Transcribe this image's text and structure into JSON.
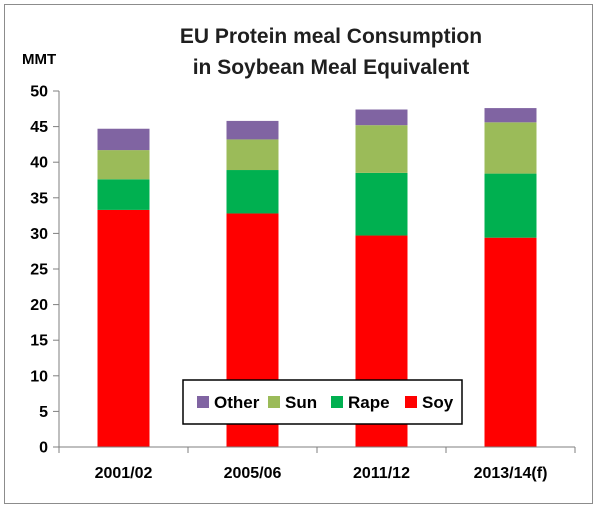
{
  "chart_data": {
    "type": "stacked-bar",
    "title": "EU Protein meal Consumption",
    "subtitle": "in Soybean Meal Equivalent",
    "ylabel": "MMT",
    "ylim": [
      0,
      50
    ],
    "yticks": [
      0,
      5,
      10,
      15,
      20,
      25,
      30,
      35,
      40,
      45,
      50
    ],
    "grid": false,
    "legend": "bottom-center",
    "categories": [
      "2001/02",
      "2005/06",
      "2011/12",
      "2013/14(f)"
    ],
    "series": [
      {
        "name": "Soy",
        "color": "#ff0000",
        "values": [
          33.3,
          32.8,
          29.7,
          29.4
        ]
      },
      {
        "name": "Rape",
        "color": "#00b050",
        "values": [
          4.3,
          6.1,
          8.8,
          9.0
        ]
      },
      {
        "name": "Sun",
        "color": "#9bbb59",
        "values": [
          4.1,
          4.3,
          6.7,
          7.2
        ]
      },
      {
        "name": "Other",
        "color": "#8064a2",
        "values": [
          3.0,
          2.6,
          2.2,
          2.0
        ]
      }
    ],
    "legend_order": [
      "Other",
      "Sun",
      "Rape",
      "Soy"
    ]
  }
}
